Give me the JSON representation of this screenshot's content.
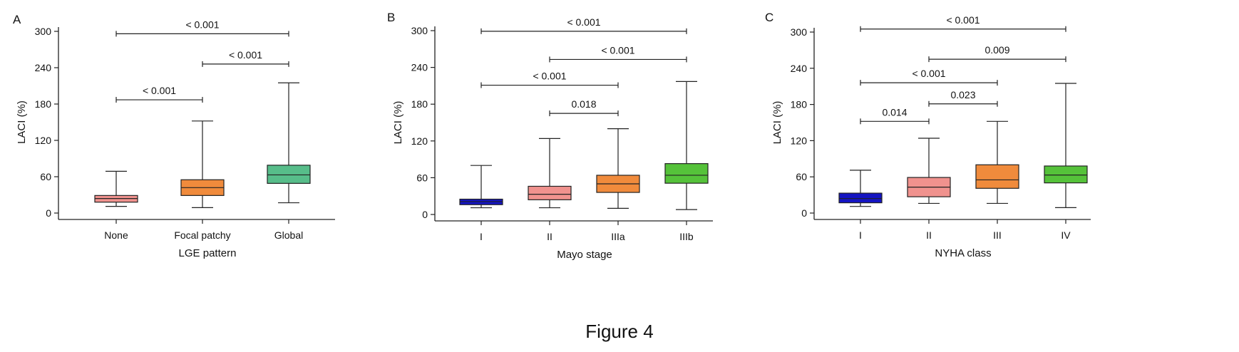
{
  "figure_caption": "Figure 4",
  "chart_data": [
    {
      "type": "box",
      "panel_label": "A",
      "xlabel": "LGE pattern",
      "ylabel": "LACI (%)",
      "ylim": [
        0,
        300
      ],
      "yticks": [
        "0",
        "60",
        "120",
        "180",
        "240",
        "300"
      ],
      "categories": [
        "None",
        "Focal patchy",
        "Global"
      ],
      "boxes": [
        {
          "min": 11,
          "q1": 18,
          "median": 24,
          "q3": 29,
          "max": 69,
          "color": "#f0928e"
        },
        {
          "min": 9,
          "q1": 29,
          "median": 42,
          "q3": 55,
          "max": 152,
          "color": "#f08b3c"
        },
        {
          "min": 17,
          "q1": 49,
          "median": 63,
          "q3": 79,
          "max": 215,
          "color": "#57bd8a"
        }
      ],
      "comparisons": [
        {
          "from": 0,
          "to": 1,
          "y": 187,
          "label": "< 0.001"
        },
        {
          "from": 1,
          "to": 2,
          "y": 246,
          "label": "< 0.001"
        },
        {
          "from": 0,
          "to": 2,
          "y": 296,
          "label": "< 0.001"
        }
      ]
    },
    {
      "type": "box",
      "panel_label": "B",
      "xlabel": "Mayo stage",
      "ylabel": "LACI (%)",
      "ylim": [
        0,
        300
      ],
      "yticks": [
        "0",
        "60",
        "120",
        "180",
        "240",
        "300"
      ],
      "categories": [
        "I",
        "II",
        "IIIa",
        "IIIb"
      ],
      "boxes": [
        {
          "min": 11,
          "q1": 16,
          "median": 21,
          "q3": 25,
          "max": 80,
          "color": "#1414c2"
        },
        {
          "min": 11,
          "q1": 24,
          "median": 33,
          "q3": 46,
          "max": 124,
          "color": "#f0928e"
        },
        {
          "min": 10,
          "q1": 36,
          "median": 50,
          "q3": 64,
          "max": 140,
          "color": "#f08b3c"
        },
        {
          "min": 8,
          "q1": 51,
          "median": 64,
          "q3": 83,
          "max": 217,
          "color": "#55c23a"
        }
      ],
      "comparisons": [
        {
          "from": 1,
          "to": 2,
          "y": 165,
          "label": "0.018"
        },
        {
          "from": 0,
          "to": 2,
          "y": 211,
          "label": "< 0.001"
        },
        {
          "from": 1,
          "to": 3,
          "y": 253,
          "label": "< 0.001"
        },
        {
          "from": 0,
          "to": 3,
          "y": 299,
          "label": "< 0.001"
        }
      ]
    },
    {
      "type": "box",
      "panel_label": "C",
      "xlabel": "NYHA class",
      "ylabel": "LACI (%)",
      "ylim": [
        0,
        300
      ],
      "yticks": [
        "0",
        "60",
        "120",
        "180",
        "240",
        "300"
      ],
      "categories": [
        "I",
        "II",
        "III",
        "IV"
      ],
      "boxes": [
        {
          "min": 11,
          "q1": 17,
          "median": 24,
          "q3": 33,
          "max": 71,
          "color": "#1414c2"
        },
        {
          "min": 16,
          "q1": 27,
          "median": 43,
          "q3": 59,
          "max": 124,
          "color": "#f0928e"
        },
        {
          "min": 16,
          "q1": 41,
          "median": 55,
          "q3": 80,
          "max": 152,
          "color": "#f08b3c"
        },
        {
          "min": 9,
          "q1": 50,
          "median": 63,
          "q3": 78,
          "max": 215,
          "color": "#55c23a"
        }
      ],
      "comparisons": [
        {
          "from": 0,
          "to": 1,
          "y": 152,
          "label": "0.014"
        },
        {
          "from": 1,
          "to": 2,
          "y": 181,
          "label": "0.023"
        },
        {
          "from": 0,
          "to": 2,
          "y": 216,
          "label": "< 0.001"
        },
        {
          "from": 1,
          "to": 3,
          "y": 255,
          "label": "0.009"
        },
        {
          "from": 0,
          "to": 3,
          "y": 305,
          "label": "< 0.001"
        }
      ]
    }
  ]
}
